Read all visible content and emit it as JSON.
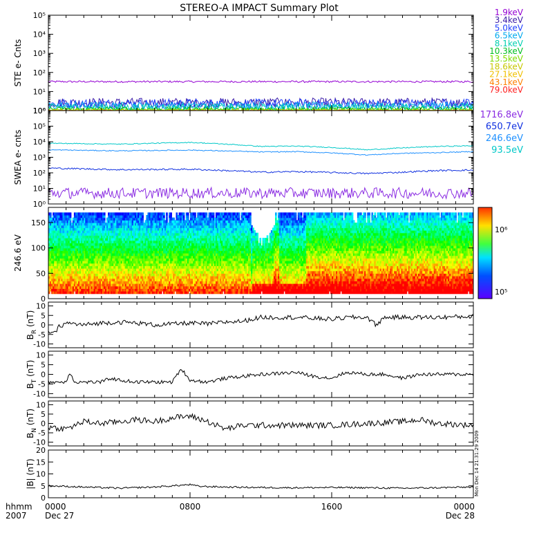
{
  "title": "STEREO-A IMPACT Summary Plot",
  "time_axis": {
    "corner_top": "hhmm",
    "corner_bottom": "2007",
    "ticks": [
      {
        "hour": 0,
        "label": "0000",
        "sublabel": "Dec 27"
      },
      {
        "hour": 8,
        "label": "0800",
        "sublabel": ""
      },
      {
        "hour": 16,
        "label": "1600",
        "sublabel": ""
      },
      {
        "hour": 24,
        "label": "0000",
        "sublabel": "Dec 28"
      }
    ],
    "range_hours": [
      0,
      24
    ],
    "minor_every_hours": 1
  },
  "timestamp": "Mon Dec 14 21:31:29 2009",
  "colors": {
    "2000": "#9400d3",
    "3400": "#3a1aa8",
    "5000": "#2040ff",
    "6500": "#00aaee",
    "8100": "#00d0b0",
    "10300": "#00c020",
    "13500": "#7fdd00",
    "18600": "#c8c800",
    "27100": "#f0c000",
    "43100": "#ff8000",
    "79000": "#ff2020",
    "1716": "#8a2be2",
    "650": "#1030e0",
    "246": "#1e90ff",
    "93": "#00c8c8"
  },
  "chart_data": [
    {
      "type": "line",
      "ylabel": "STE e- Cnts",
      "yscale": "log",
      "ylim": [
        1,
        100000
      ],
      "yticks": [
        "10⁰",
        "10¹",
        "10²",
        "10³",
        "10⁴",
        "10⁵"
      ],
      "series": [
        {
          "name": "1.9keV",
          "color": "2000",
          "level": 33,
          "noise": 0.05
        },
        {
          "name": "3.4keV",
          "color": "3400",
          "level": 2.6,
          "noise": 0.25
        },
        {
          "name": "5.0keV",
          "color": "5000",
          "level": 2.3,
          "noise": 0.25
        },
        {
          "name": "6.5keV",
          "color": "6500",
          "level": 1.8,
          "noise": 0.2
        },
        {
          "name": "8.1keV",
          "color": "8100",
          "level": 1.5,
          "noise": 0.18
        },
        {
          "name": "10.3keV",
          "color": "10300",
          "level": 1.2,
          "noise": 0.12
        },
        {
          "name": "13.5keV",
          "color": "13500",
          "level": 1.1,
          "noise": 0.08
        },
        {
          "name": "18.6keV",
          "color": "18600",
          "level": 1.05,
          "noise": 0.04
        },
        {
          "name": "27.1keV",
          "color": "27100",
          "level": 1.0,
          "noise": 0.02
        },
        {
          "name": "43.1keV",
          "color": "43100",
          "level": 1.0,
          "noise": 0.01
        },
        {
          "name": "79.0keV",
          "color": "79000",
          "level": 1.0,
          "noise": 0.01
        }
      ]
    },
    {
      "type": "line",
      "ylabel": "SWEA e- cnts",
      "yscale": "log",
      "ylim": [
        1,
        1000000
      ],
      "yticks": [
        "10⁰",
        "10¹",
        "10²",
        "10³",
        "10⁴",
        "10⁵",
        "10⁶"
      ],
      "series": [
        {
          "name": "1716.8eV",
          "color": "1716",
          "t": [
            0,
            24
          ],
          "y": [
            5,
            5
          ],
          "noise": 0.35
        },
        {
          "name": "650.7eV",
          "color": "650",
          "t": [
            0,
            4,
            8,
            12,
            14,
            18,
            20,
            22,
            24
          ],
          "y": [
            200,
            160,
            170,
            110,
            120,
            90,
            110,
            140,
            150
          ],
          "noise": 0.05
        },
        {
          "name": "246.6eV",
          "color": "246",
          "t": [
            0,
            4,
            8,
            12,
            14,
            16,
            18,
            20,
            22,
            24
          ],
          "y": [
            3000,
            2600,
            2900,
            2200,
            2300,
            1900,
            1400,
            1800,
            2000,
            2300
          ],
          "noise": 0.03
        },
        {
          "name": "93.5eV",
          "color": "93",
          "t": [
            0,
            4,
            8,
            12,
            14,
            16,
            18,
            20,
            22,
            24
          ],
          "y": [
            8000,
            7000,
            9000,
            5000,
            5200,
            4300,
            3000,
            4000,
            5000,
            5500
          ],
          "noise": 0.03
        }
      ]
    },
    {
      "type": "heatmap",
      "ylabel": "246.6 eV",
      "ylim": [
        0,
        180
      ],
      "yticks": [
        0,
        50,
        100,
        150
      ],
      "colorbar": {
        "scale": "log",
        "range": [
          100000,
          1000000
        ],
        "tick_labels": [
          "10⁵",
          "10⁶"
        ]
      }
    },
    {
      "type": "line",
      "ylabel": "B",
      "ysub": "R",
      "yunit": "(nT)",
      "ylim": [
        -12,
        12
      ],
      "yticks": [
        10,
        5,
        0,
        -5,
        -10
      ],
      "series": [
        {
          "t": [
            0,
            0.3,
            0.6,
            1,
            2,
            3,
            4,
            5,
            6,
            7,
            8,
            9,
            10,
            11,
            12,
            14,
            16,
            17,
            18,
            18.5,
            19,
            20,
            22,
            24
          ],
          "y": [
            -3,
            -5,
            -1,
            1,
            0,
            1,
            1.5,
            1,
            0,
            0.5,
            1,
            0.5,
            1.5,
            2,
            4,
            4,
            3,
            4,
            4,
            0,
            4,
            4,
            4,
            4.5
          ],
          "noise": 1.2
        }
      ]
    },
    {
      "type": "line",
      "ylabel": "B",
      "ysub": "T",
      "yunit": "(nT)",
      "ylim": [
        -12,
        12
      ],
      "yticks": [
        10,
        5,
        0,
        -5,
        -10
      ],
      "series": [
        {
          "t": [
            0,
            1,
            1.2,
            1.5,
            2,
            3,
            3.5,
            4,
            5,
            6,
            7,
            7.5,
            8,
            9,
            10,
            11,
            12,
            14,
            15,
            16,
            16.5,
            17,
            18,
            19,
            20,
            21,
            22,
            24
          ],
          "y": [
            -4,
            -4,
            1,
            -4,
            -4,
            -4,
            -2,
            -3,
            -4,
            -4,
            -4,
            3,
            -3,
            -4,
            -2,
            -1,
            0,
            1,
            -1,
            -2,
            0,
            1,
            0,
            0,
            -2,
            0,
            0,
            0
          ],
          "noise": 0.9
        }
      ]
    },
    {
      "type": "line",
      "ylabel": "B",
      "ysub": "N",
      "yunit": "(nT)",
      "ylim": [
        -12,
        12
      ],
      "yticks": [
        10,
        5,
        0,
        -5,
        -10
      ],
      "series": [
        {
          "t": [
            0,
            1,
            2,
            3,
            4,
            5,
            6,
            7,
            8,
            9,
            10,
            11,
            12,
            14,
            16,
            18,
            20,
            21,
            22,
            24
          ],
          "y": [
            -2,
            -3,
            1,
            0,
            1,
            2,
            1,
            3,
            4,
            1,
            -3,
            -1,
            -1,
            -1,
            -1,
            0,
            1,
            2,
            0,
            -1
          ],
          "noise": 1.6
        }
      ]
    },
    {
      "type": "line",
      "ylabel": "|B| (nT)",
      "ylim": [
        0,
        20
      ],
      "yticks": [
        20,
        15,
        10,
        5,
        0
      ],
      "series": [
        {
          "t": [
            0,
            2,
            4,
            6,
            7,
            8,
            8.5,
            10,
            12,
            14,
            16,
            18,
            20,
            22,
            24
          ],
          "y": [
            5,
            4.5,
            4,
            4.5,
            5,
            5.5,
            4.8,
            4.5,
            4.3,
            4.2,
            4.3,
            4.2,
            4,
            4.2,
            4.5
          ],
          "noise": 0.35
        }
      ]
    }
  ]
}
